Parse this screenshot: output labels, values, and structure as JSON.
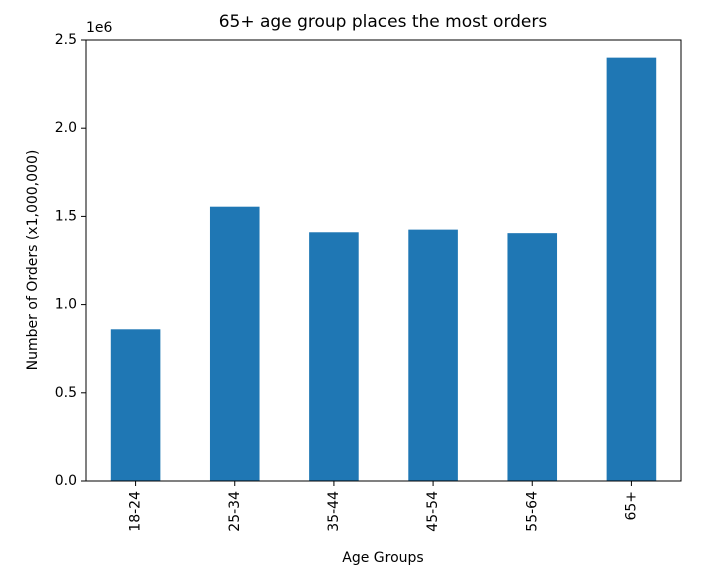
{
  "chart_data": {
    "type": "bar",
    "title": "65+ age group places the most orders",
    "xlabel": "Age Groups",
    "ylabel": "Number of Orders (x1,000,000)",
    "offset_label": "1e6",
    "categories": [
      "18-24",
      "25-34",
      "35-44",
      "45-54",
      "55-64",
      "65+"
    ],
    "values": [
      860000,
      1555000,
      1410000,
      1425000,
      1405000,
      2400000
    ],
    "ylim": [
      0,
      2500000
    ],
    "yticks": [
      {
        "value": 0,
        "label": "0.0"
      },
      {
        "value": 500000,
        "label": "0.5"
      },
      {
        "value": 1000000,
        "label": "1.0"
      },
      {
        "value": 1500000,
        "label": "1.5"
      },
      {
        "value": 2000000,
        "label": "2.0"
      },
      {
        "value": 2500000,
        "label": "2.5"
      }
    ],
    "bar_color": "#1f77b4",
    "grid": false,
    "legend": "none"
  }
}
